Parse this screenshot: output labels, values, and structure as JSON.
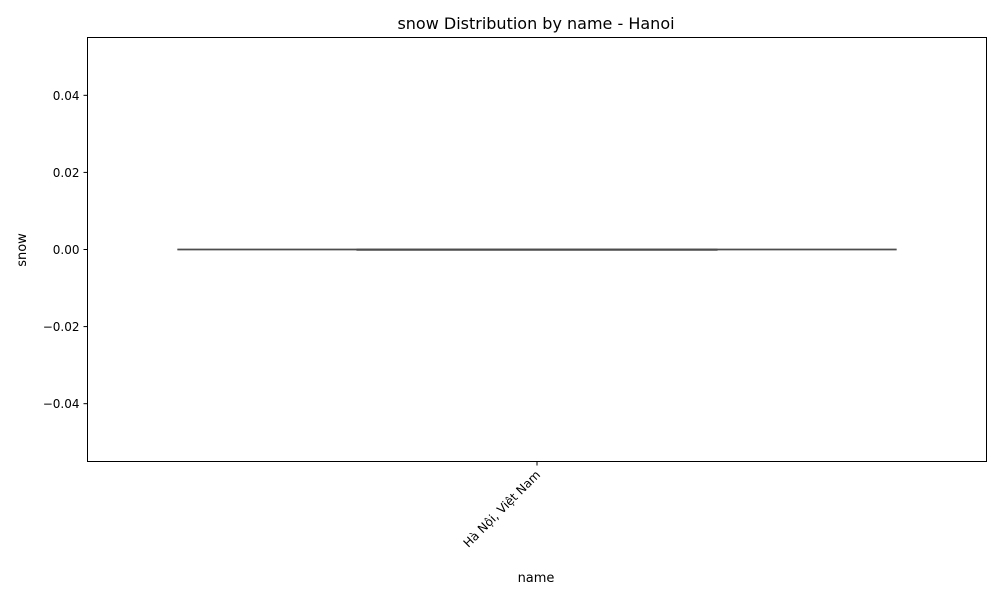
{
  "chart_data": {
    "type": "box",
    "title": "snow Distribution by name - Hanoi",
    "xlabel": "name",
    "ylabel": "snow",
    "categories": [
      "Hà Nội, Việt Nam"
    ],
    "ylim": [
      -0.055,
      0.055
    ],
    "yticks": [
      0.04,
      0.02,
      0.0,
      -0.02,
      -0.04
    ],
    "ytick_labels": [
      "0.04",
      "0.02",
      "0.00",
      "−0.02",
      "−0.04"
    ],
    "series": [
      {
        "category": "Hà Nội, Việt Nam",
        "min": 0,
        "q1": 0,
        "median": 0,
        "q3": 0,
        "max": 0
      }
    ],
    "grid": false,
    "legend": "none",
    "colors": {
      "box_line": "#4d4d4d",
      "axis": "#000000"
    }
  }
}
